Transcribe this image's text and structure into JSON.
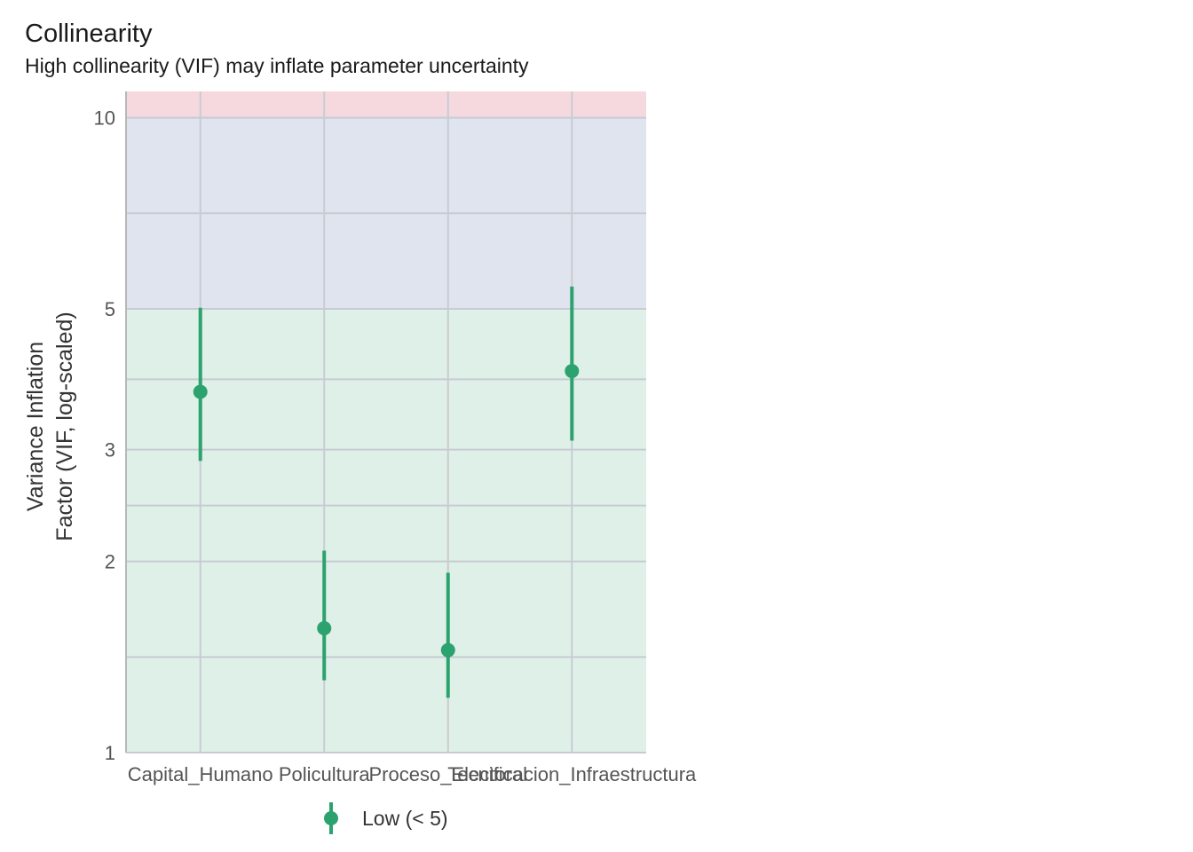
{
  "title": "Collinearity",
  "subtitle": "High collinearity (VIF) may inflate parameter uncertainty",
  "legend": {
    "label": "Low (< 5)"
  },
  "colors": {
    "point": "#2ca26e",
    "zone_low": "#dff0e8",
    "zone_moderate": "#dfe4ef",
    "zone_high": "#f5d9df"
  },
  "chart_data": {
    "type": "scatter",
    "ylabel": "Variance Inflation\nFactor (VIF, log-scaled)",
    "y_scale": "log",
    "ylim": [
      1,
      11
    ],
    "y_ticks": [
      1,
      2,
      3,
      5,
      10
    ],
    "zones": [
      {
        "name": "low",
        "from": 1,
        "to": 5
      },
      {
        "name": "moderate",
        "from": 5,
        "to": 10
      },
      {
        "name": "high",
        "from": 10,
        "to": 11
      }
    ],
    "categories": [
      "Capital_Humano",
      "Policultura",
      "Proceso_Electoral",
      "Tecnificacion_Infraestructura"
    ],
    "points": [
      {
        "term": "Capital_Humano",
        "vif": 3.7,
        "ci_low": 2.88,
        "ci_high": 5.02
      },
      {
        "term": "Policultura",
        "vif": 1.57,
        "ci_low": 1.3,
        "ci_high": 2.08
      },
      {
        "term": "Proceso_Electoral",
        "vif": 1.45,
        "ci_low": 1.22,
        "ci_high": 1.92
      },
      {
        "term": "Tecnificacion_Infraestructura",
        "vif": 3.99,
        "ci_low": 3.1,
        "ci_high": 5.42
      }
    ],
    "series": [
      {
        "name": "Low (< 5)"
      }
    ],
    "grid": true,
    "legend_position": "bottom"
  }
}
